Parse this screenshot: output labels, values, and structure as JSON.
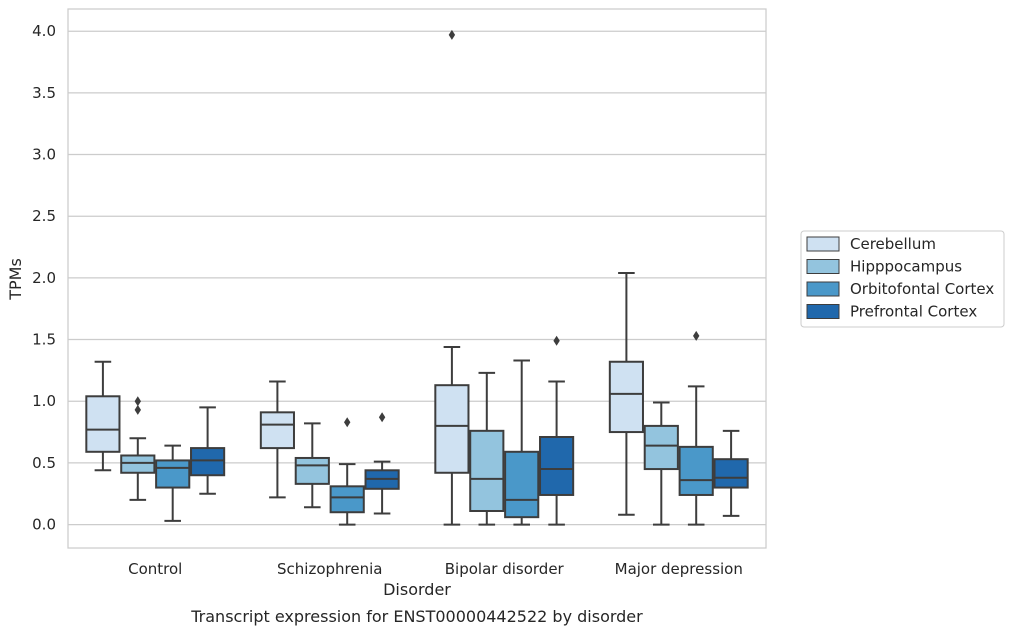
{
  "chart_data": {
    "type": "box",
    "caption": "Transcript expression for ENST00000442522 by disorder",
    "xlabel": "Disorder",
    "ylabel": "TPMs",
    "ylim": [
      -0.19,
      4.18
    ],
    "yticks": [
      0.0,
      0.5,
      1.0,
      1.5,
      2.0,
      2.5,
      3.0,
      3.5,
      4.0
    ],
    "ytick_labels": [
      "0.0",
      "0.5",
      "1.0",
      "1.5",
      "2.0",
      "2.5",
      "3.0",
      "3.5",
      "4.0"
    ],
    "grid": "horizontal",
    "legend_position": "right",
    "categories": [
      "Control",
      "Schizophrenia",
      "Bipolar disorder",
      "Major depression"
    ],
    "series": [
      {
        "name": "Cerebellum",
        "color": "#cfe1f2",
        "boxes": [
          {
            "whisker_low": 0.44,
            "q1": 0.59,
            "median": 0.77,
            "q3": 1.04,
            "whisker_high": 1.32,
            "outliers": []
          },
          {
            "whisker_low": 0.22,
            "q1": 0.62,
            "median": 0.81,
            "q3": 0.91,
            "whisker_high": 1.16,
            "outliers": []
          },
          {
            "whisker_low": 0.0,
            "q1": 0.42,
            "median": 0.8,
            "q3": 1.13,
            "whisker_high": 1.44,
            "outliers": [
              3.97
            ]
          },
          {
            "whisker_low": 0.08,
            "q1": 0.75,
            "median": 1.06,
            "q3": 1.32,
            "whisker_high": 2.04,
            "outliers": []
          }
        ]
      },
      {
        "name": "Hipppocampus",
        "color": "#93c4de",
        "boxes": [
          {
            "whisker_low": 0.2,
            "q1": 0.42,
            "median": 0.5,
            "q3": 0.56,
            "whisker_high": 0.7,
            "outliers": [
              1.0,
              0.93
            ]
          },
          {
            "whisker_low": 0.14,
            "q1": 0.33,
            "median": 0.48,
            "q3": 0.54,
            "whisker_high": 0.82,
            "outliers": []
          },
          {
            "whisker_low": 0.0,
            "q1": 0.11,
            "median": 0.37,
            "q3": 0.76,
            "whisker_high": 1.23,
            "outliers": []
          },
          {
            "whisker_low": 0.0,
            "q1": 0.45,
            "median": 0.64,
            "q3": 0.8,
            "whisker_high": 0.99,
            "outliers": []
          }
        ]
      },
      {
        "name": "Orbitofontal Cortex",
        "color": "#4a98c9",
        "boxes": [
          {
            "whisker_low": 0.03,
            "q1": 0.3,
            "median": 0.46,
            "q3": 0.52,
            "whisker_high": 0.64,
            "outliers": []
          },
          {
            "whisker_low": 0.0,
            "q1": 0.1,
            "median": 0.22,
            "q3": 0.31,
            "whisker_high": 0.49,
            "outliers": [
              0.83
            ]
          },
          {
            "whisker_low": 0.0,
            "q1": 0.06,
            "median": 0.2,
            "q3": 0.59,
            "whisker_high": 1.33,
            "outliers": []
          },
          {
            "whisker_low": 0.0,
            "q1": 0.24,
            "median": 0.36,
            "q3": 0.63,
            "whisker_high": 1.12,
            "outliers": [
              1.53
            ]
          }
        ]
      },
      {
        "name": "Prefrontal Cortex",
        "color": "#2068ac",
        "boxes": [
          {
            "whisker_low": 0.25,
            "q1": 0.4,
            "median": 0.52,
            "q3": 0.62,
            "whisker_high": 0.95,
            "outliers": []
          },
          {
            "whisker_low": 0.09,
            "q1": 0.29,
            "median": 0.37,
            "q3": 0.44,
            "whisker_high": 0.51,
            "outliers": [
              0.87
            ]
          },
          {
            "whisker_low": 0.0,
            "q1": 0.24,
            "median": 0.45,
            "q3": 0.71,
            "whisker_high": 1.16,
            "outliers": [
              1.49
            ]
          },
          {
            "whisker_low": 0.07,
            "q1": 0.3,
            "median": 0.38,
            "q3": 0.53,
            "whisker_high": 0.76,
            "outliers": []
          }
        ]
      }
    ]
  }
}
